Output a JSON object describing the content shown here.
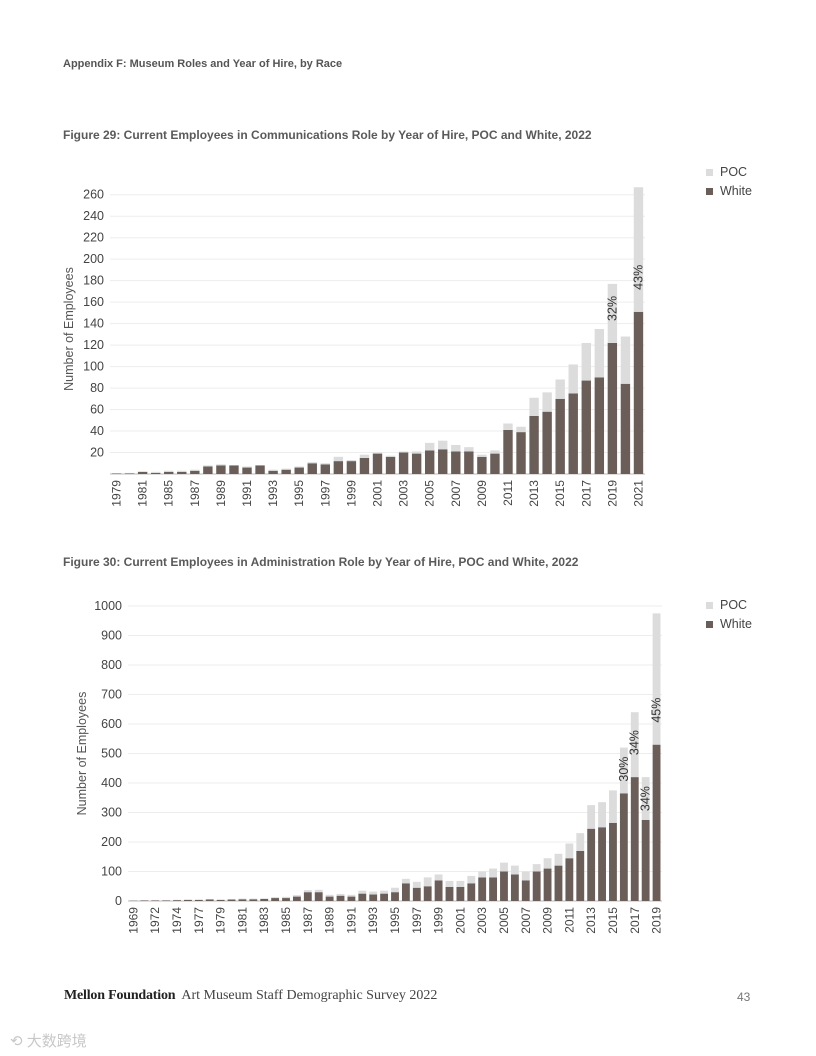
{
  "page": {
    "appendix_heading": "Appendix F: Museum Roles and Year of Hire, by Race",
    "footer_org": "Mellon Foundation",
    "footer_survey": "Art Museum Staff Demographic Survey 2022",
    "page_number": "43",
    "watermark": "⟲ 大数跨境"
  },
  "colors": {
    "poc": "#dcdcdc",
    "white": "#6b5e58",
    "text": "#444444",
    "grid": "#ededed"
  },
  "chart_data": [
    {
      "type": "bar",
      "stacked": true,
      "title": "Figure 29: Current Employees in Communications Role by Year of Hire, POC and White, 2022",
      "ylabel": "Number of Employees",
      "xlabel": "",
      "ylim": [
        0,
        270
      ],
      "yticks": [
        20,
        40,
        60,
        80,
        100,
        120,
        140,
        160,
        180,
        200,
        220,
        240,
        260
      ],
      "legend": [
        "POC",
        "White"
      ],
      "legend_position": "top-right",
      "grid": true,
      "x_tick_labels": [
        "1979",
        "1981",
        "1985",
        "1987",
        "1989",
        "1991",
        "1993",
        "1995",
        "1997",
        "1999",
        "2001",
        "2003",
        "2005",
        "2007",
        "2009",
        "2011",
        "2013",
        "2015",
        "2017",
        "2019",
        "2021"
      ],
      "tick_every": 2,
      "series": [
        {
          "name": "White",
          "values": [
            0.5,
            0.5,
            2,
            1,
            2,
            2,
            3,
            7,
            8,
            8,
            6,
            8,
            3,
            4,
            6,
            10,
            9,
            12,
            12,
            15,
            19,
            16,
            20,
            19,
            22,
            23,
            21,
            21,
            16,
            19,
            41,
            39,
            54,
            58,
            70,
            75,
            87,
            90,
            122,
            84,
            151
          ]
        },
        {
          "name": "POC",
          "values": [
            0,
            0.5,
            0.5,
            1,
            1,
            1,
            1,
            1,
            1,
            0,
            1,
            0,
            1,
            1,
            1,
            1,
            1,
            4,
            1,
            3,
            1,
            1,
            1,
            2,
            7,
            8,
            6,
            4,
            2,
            3,
            6,
            5,
            17,
            18,
            18,
            27,
            35,
            45,
            55,
            44,
            116
          ]
        }
      ],
      "annotations": [
        {
          "label": "32%",
          "category_index": 38
        },
        {
          "label": "43%",
          "category_index": 40
        }
      ]
    },
    {
      "type": "bar",
      "stacked": true,
      "title": "Figure 30: Current Employees in Administration Role by Year of Hire, POC and White, 2022",
      "ylabel": "Number of Employees",
      "xlabel": "",
      "ylim": [
        0,
        1000
      ],
      "yticks": [
        0,
        100,
        200,
        300,
        400,
        500,
        600,
        700,
        800,
        900,
        1000
      ],
      "legend": [
        "POC",
        "White"
      ],
      "legend_position": "top-right",
      "grid": true,
      "x_tick_labels": [
        "1969",
        "1972",
        "1974",
        "1977",
        "1979",
        "1981",
        "1983",
        "1985",
        "1987",
        "1989",
        "1991",
        "1993",
        "1995",
        "1997",
        "1999",
        "2001",
        "2003",
        "2005",
        "2007",
        "2009",
        "2011",
        "2013",
        "2015",
        "2017",
        "2019"
      ],
      "tick_every": 2,
      "series": [
        {
          "name": "White",
          "values": [
            1,
            2,
            2,
            2,
            3,
            4,
            4,
            5,
            4,
            5,
            6,
            6,
            7,
            10,
            10,
            15,
            30,
            30,
            15,
            18,
            15,
            25,
            22,
            25,
            30,
            60,
            45,
            50,
            70,
            48,
            48,
            60,
            80,
            80,
            100,
            90,
            70,
            100,
            110,
            120,
            145,
            170,
            245,
            250,
            265,
            365,
            420,
            275,
            530
          ]
        },
        {
          "name": "POC",
          "values": [
            0,
            0,
            0,
            0,
            1,
            1,
            1,
            2,
            1,
            1,
            2,
            2,
            2,
            3,
            4,
            5,
            7,
            8,
            6,
            6,
            6,
            10,
            10,
            10,
            15,
            15,
            20,
            30,
            20,
            20,
            20,
            25,
            20,
            30,
            30,
            30,
            30,
            25,
            35,
            40,
            50,
            60,
            80,
            85,
            110,
            155,
            220,
            145,
            445
          ]
        }
      ],
      "annotations": [
        {
          "label": "30%",
          "category_index": 45
        },
        {
          "label": "34%",
          "category_index": 46
        },
        {
          "label": "34%",
          "category_index": 47
        },
        {
          "label": "45%",
          "category_index": 48
        }
      ]
    }
  ]
}
